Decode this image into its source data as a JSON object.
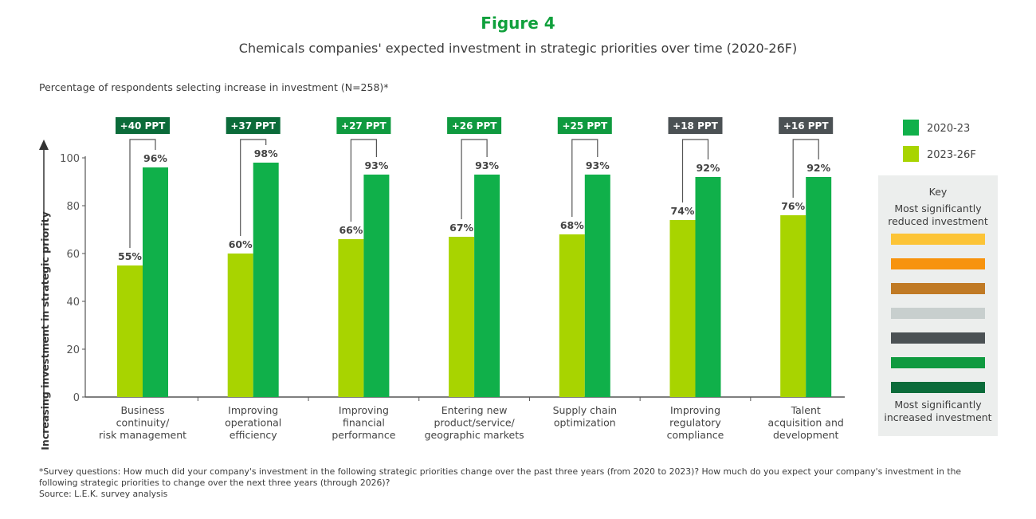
{
  "title": "Figure 4",
  "subtitle": "Chemicals companies' expected investment in strategic priorities over time (2020-26F)",
  "note": "Percentage of respondents selecting increase in investment (N=258)*",
  "footnote": "*Survey questions: How much did your company's investment in the following strategic priorities change over the past three years (from 2020 to 2023)? How much do you expect your company's investment in the following strategic priorities to change over the next three years (through 2026)?",
  "source": "Source:   L.E.K. survey analysis",
  "key": {
    "title": "Key",
    "top": "Most significantly reduced investment",
    "bottom": "Most significantly increased investment",
    "colors": [
      "#fcc437",
      "#f7930e",
      "#c07a25",
      "#c8cfce",
      "#4b5154",
      "#0f9a3f",
      "#0b6b3a"
    ]
  },
  "chart_data": {
    "type": "bar",
    "title": "Figure 4",
    "ylabel": "Increasing investment in strategic priority",
    "ylim": [
      0,
      100
    ],
    "yticks": [
      0,
      20,
      40,
      60,
      80,
      100
    ],
    "grid": false,
    "legend": "right",
    "categories": [
      [
        "Business",
        "continuity/",
        "risk management"
      ],
      [
        "Improving",
        "operational",
        "efficiency"
      ],
      [
        "Improving",
        "financial",
        "performance"
      ],
      [
        "Entering new",
        "product/service/",
        "geographic markets"
      ],
      [
        "Supply chain",
        "optimization"
      ],
      [
        "Improving",
        "regulatory",
        "compliance"
      ],
      [
        "Talent",
        "acquisition and",
        "development"
      ]
    ],
    "series": [
      {
        "name": "2023-26F",
        "color": "#a8d400",
        "values": [
          55,
          60,
          66,
          67,
          68,
          74,
          76
        ]
      },
      {
        "name": "2020-23",
        "color": "#10b04a",
        "values": [
          96,
          98,
          93,
          93,
          93,
          92,
          92
        ]
      }
    ],
    "legend_order": [
      "2020-23",
      "2023-26F"
    ],
    "annotations": [
      {
        "text": "+40 PPT",
        "color": "#0b6b3a"
      },
      {
        "text": "+37 PPT",
        "color": "#0b6b3a"
      },
      {
        "text": "+27 PPT",
        "color": "#0f9a3f"
      },
      {
        "text": "+26 PPT",
        "color": "#0f9a3f"
      },
      {
        "text": "+25 PPT",
        "color": "#0f9a3f"
      },
      {
        "text": "+18 PPT",
        "color": "#4b5154"
      },
      {
        "text": "+16 PPT",
        "color": "#4b5154"
      }
    ]
  }
}
